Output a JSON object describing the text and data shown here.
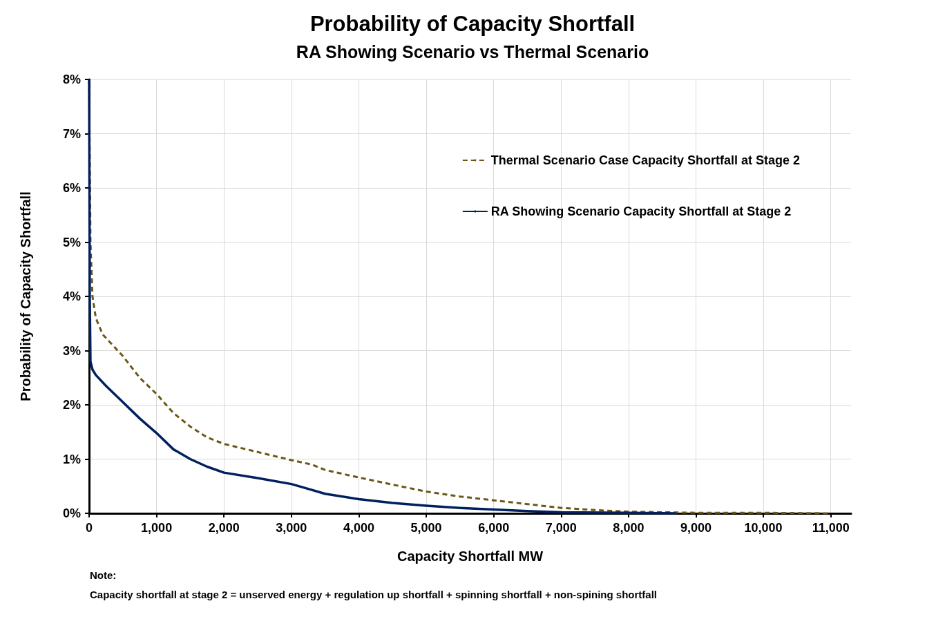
{
  "chart_data": {
    "type": "line",
    "title": "Probability of Capacity Shortfall",
    "subtitle": "RA Showing Scenario vs Thermal Scenario",
    "xlabel": "Capacity Shortfall MW",
    "ylabel": "Probability of Capacity Shortfall",
    "xlim": [
      0,
      11300
    ],
    "xticks": [
      0,
      {
        "value": 1000,
        "label": "1,000"
      },
      {
        "value": 2000,
        "label": "2,000"
      },
      {
        "value": 3000,
        "label": "3,000"
      },
      {
        "value": 4000,
        "label": "4,000"
      },
      {
        "value": 5000,
        "label": "5,000"
      },
      {
        "value": 6000,
        "label": "6,000"
      },
      {
        "value": 7000,
        "label": "7,000"
      },
      {
        "value": 8000,
        "label": "8,000"
      },
      {
        "value": 9000,
        "label": "9,000"
      },
      {
        "value": 10000,
        "label": "10,000"
      },
      {
        "value": 11000,
        "label": "11,000"
      }
    ],
    "ylim": [
      0,
      8
    ],
    "yticks": [
      {
        "value": 0,
        "label": "0%"
      },
      {
        "value": 1,
        "label": "1%"
      },
      {
        "value": 2,
        "label": "2%"
      },
      {
        "value": 3,
        "label": "3%"
      },
      {
        "value": 4,
        "label": "4%"
      },
      {
        "value": 5,
        "label": "5%"
      },
      {
        "value": 6,
        "label": "6%"
      },
      {
        "value": 7,
        "label": "7%"
      },
      {
        "value": 8,
        "label": "8%"
      }
    ],
    "grid": true,
    "legend": "top right",
    "marker": "none",
    "series": [
      {
        "name": "Thermal Scenario Case Capacity Shortfall at Stage 2",
        "color": "#6b5716",
        "line_style": "dashed",
        "x": [
          0,
          20,
          50,
          100,
          200,
          500,
          750,
          1000,
          1250,
          1500,
          1750,
          2000,
          2500,
          3000,
          3300,
          3500,
          4000,
          4500,
          5000,
          5500,
          6000,
          6500,
          7000,
          7500,
          8000,
          9000,
          10000,
          11000
        ],
        "values": [
          8,
          5,
          4,
          3.6,
          3.3,
          2.9,
          2.5,
          2.2,
          1.85,
          1.6,
          1.4,
          1.28,
          1.13,
          0.98,
          0.9,
          0.8,
          0.66,
          0.53,
          0.4,
          0.31,
          0.24,
          0.17,
          0.1,
          0.06,
          0.03,
          0.01,
          0.01,
          0
        ]
      },
      {
        "name": "RA Showing Scenario Capacity Shortfall at Stage 2",
        "color": "#002060",
        "line_style": "solid",
        "x": [
          0,
          10,
          20,
          50,
          100,
          250,
          500,
          750,
          1000,
          1250,
          1500,
          1750,
          2000,
          2500,
          3000,
          3250,
          3500,
          4000,
          4500,
          5000,
          5500,
          6000,
          6500,
          7000,
          8000,
          8700
        ],
        "values": [
          8,
          4,
          2.8,
          2.65,
          2.55,
          2.35,
          2.05,
          1.75,
          1.48,
          1.18,
          1.0,
          0.86,
          0.75,
          0.65,
          0.54,
          0.45,
          0.36,
          0.26,
          0.19,
          0.14,
          0.1,
          0.07,
          0.04,
          0.02,
          0.01,
          0
        ]
      }
    ],
    "annotations": [
      "Note:",
      "Capacity shortfall at stage 2 = unserved energy + regulation up shortfall + spinning shortfall + non-spining shortfall"
    ]
  }
}
